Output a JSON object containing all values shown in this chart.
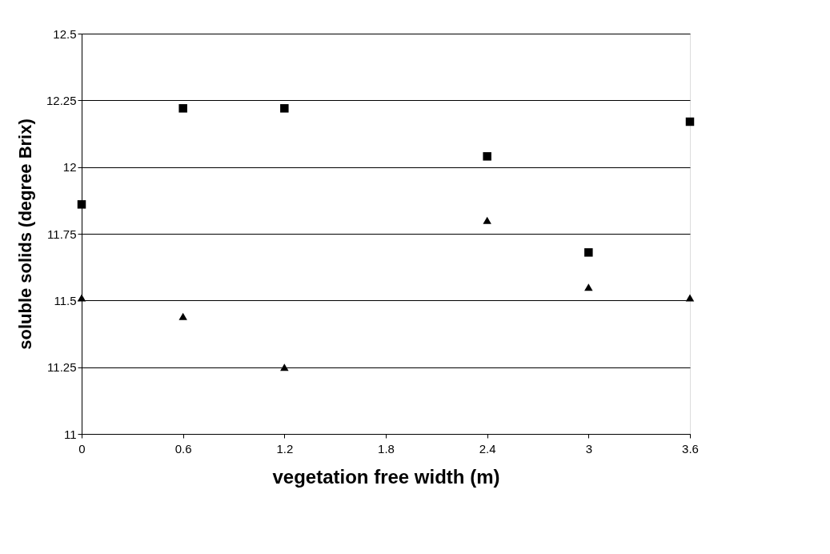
{
  "chart_data": {
    "type": "scatter",
    "xlabel": "vegetation free width (m)",
    "ylabel": "soluble solids (degree Brix)",
    "x": [
      0,
      0.6,
      1.2,
      2.4,
      3,
      3.6
    ],
    "series": [
      {
        "color": "#000000",
        "marker": "square",
        "values": [
          11.86,
          12.22,
          12.22,
          12.04,
          11.68,
          12.17
        ]
      },
      {
        "color": "#000000",
        "marker": "triangle",
        "values": [
          11.51,
          11.44,
          11.25,
          11.8,
          11.55,
          11.51
        ]
      }
    ],
    "xlim": [
      0,
      3.6
    ],
    "xticks": [
      0,
      0.6,
      1.2,
      1.8,
      2.4,
      3,
      3.6
    ],
    "ylim": [
      11,
      12.5
    ],
    "yticks": [
      11,
      11.25,
      11.5,
      11.75,
      12,
      12.25,
      12.5
    ],
    "grid": "y"
  }
}
